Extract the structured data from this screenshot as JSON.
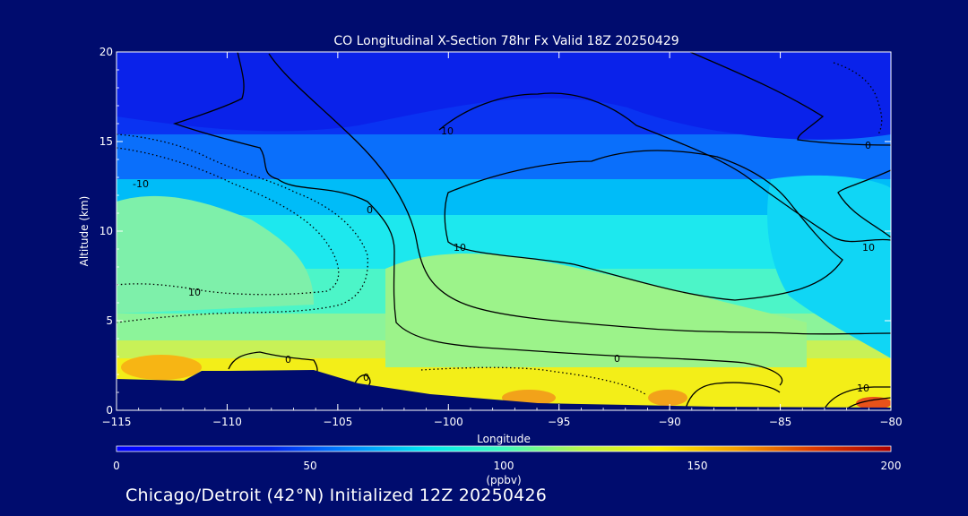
{
  "chart_data": {
    "type": "heatmap",
    "title": "CO Longitudinal X-Section 78hr  Fx Valid 18Z 20250429",
    "xlabel": "Longitude",
    "ylabel": "Altitude (km)",
    "xlim": [
      -115,
      -80
    ],
    "ylim": [
      0,
      20
    ],
    "x_ticks": [
      "−115",
      "−110",
      "−105",
      "−100",
      "−95",
      "−90",
      "−85",
      "−80"
    ],
    "y_ticks": [
      "0",
      "5",
      "10",
      "15",
      "20"
    ],
    "colorbar": {
      "label": "(ppbv)",
      "range": [
        0,
        200
      ],
      "ticks": [
        "0",
        "50",
        "100",
        "150",
        "200"
      ]
    },
    "contour_labels": [
      "0",
      "10",
      "-10"
    ],
    "footer": "Chicago/Detroit (42°N) Initialized 12Z 20250426"
  }
}
